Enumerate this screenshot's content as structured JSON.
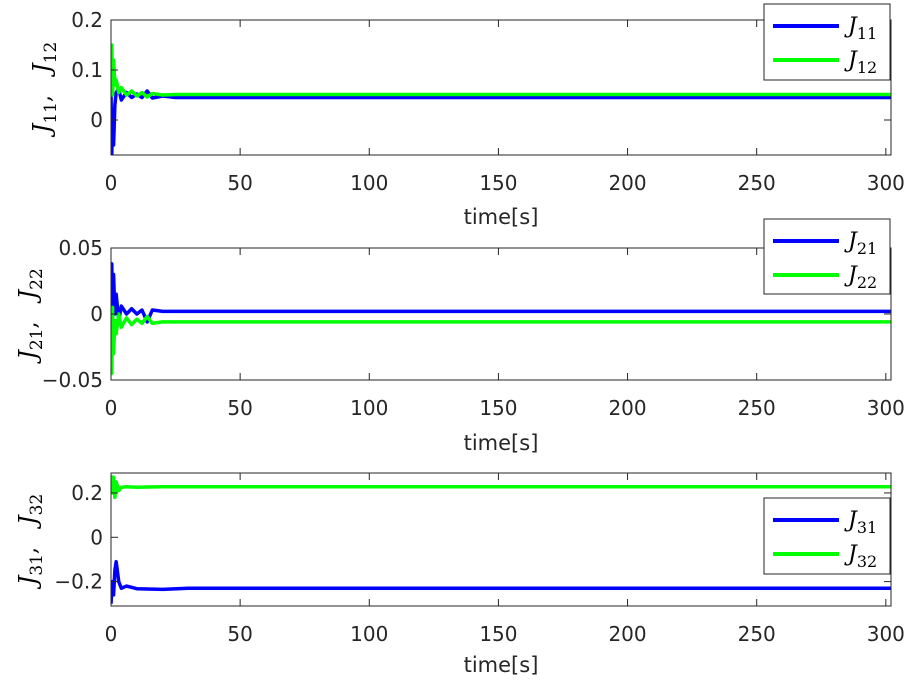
{
  "chart_data": [
    {
      "type": "line",
      "xlabel": "time[s]",
      "ylabel": {
        "symbol": "J",
        "subscripts": [
          "11",
          "12"
        ]
      },
      "xlim": [
        0,
        302
      ],
      "ylim": [
        -0.07,
        0.2
      ],
      "xticks": [
        0,
        50,
        100,
        150,
        200,
        250,
        300
      ],
      "xtick_labels": [
        "0",
        "50",
        "100",
        "150",
        "200",
        "250",
        "300"
      ],
      "yticks": [
        0,
        0.1,
        0.2
      ],
      "ytick_labels": [
        "0",
        "0.1",
        "0.2"
      ],
      "legend_position": "top-right",
      "grid": false,
      "series": [
        {
          "name": "J11",
          "symbol": "J",
          "subscript": "11",
          "color": "#0000ff",
          "x": [
            0,
            0.3,
            0.6,
            1.0,
            1.5,
            2.0,
            3.0,
            4.0,
            6.0,
            8.0,
            10.0,
            12.0,
            14.0,
            16.0,
            20.0,
            25.0,
            30.0,
            302.0
          ],
          "y": [
            0.06,
            -0.07,
            0.02,
            -0.05,
            0.03,
            0.055,
            0.062,
            0.04,
            0.055,
            0.045,
            0.052,
            0.045,
            0.058,
            0.044,
            0.048,
            0.045,
            0.045,
            0.045
          ]
        },
        {
          "name": "J12",
          "symbol": "J",
          "subscript": "12",
          "color": "#00ff00",
          "x": [
            0,
            0.3,
            0.6,
            1.0,
            1.5,
            2.0,
            3.0,
            4.0,
            6.0,
            8.0,
            10.0,
            12.0,
            14.0,
            16.0,
            20.0,
            25.0,
            30.0,
            302.0
          ],
          "y": [
            0.09,
            0.15,
            0.05,
            0.12,
            0.07,
            0.08,
            0.055,
            0.065,
            0.05,
            0.058,
            0.048,
            0.055,
            0.046,
            0.053,
            0.05,
            0.051,
            0.051,
            0.051
          ]
        }
      ]
    },
    {
      "type": "line",
      "xlabel": "time[s]",
      "ylabel": {
        "symbol": "J",
        "subscripts": [
          "21",
          "22"
        ]
      },
      "xlim": [
        0,
        302
      ],
      "ylim": [
        -0.05,
        0.05
      ],
      "xticks": [
        0,
        50,
        100,
        150,
        200,
        250,
        300
      ],
      "xtick_labels": [
        "0",
        "50",
        "100",
        "150",
        "200",
        "250",
        "300"
      ],
      "yticks": [
        -0.05,
        0,
        0.05
      ],
      "ytick_labels": [
        "−0.05",
        "0",
        "0.05"
      ],
      "legend_position": "top-right",
      "grid": false,
      "series": [
        {
          "name": "J21",
          "symbol": "J",
          "subscript": "21",
          "color": "#0000ff",
          "x": [
            0,
            0.3,
            0.6,
            1.0,
            1.5,
            2.0,
            3.0,
            4.0,
            6.0,
            8.0,
            10.0,
            12.0,
            14.0,
            16.0,
            20.0,
            30.0,
            302.0
          ],
          "y": [
            0.01,
            0.038,
            -0.01,
            0.03,
            0.0,
            0.015,
            -0.005,
            0.006,
            0.0,
            0.004,
            0.0,
            0.003,
            -0.006,
            0.003,
            0.002,
            0.002,
            0.002
          ]
        },
        {
          "name": "J22",
          "symbol": "J",
          "subscript": "22",
          "color": "#00ff00",
          "x": [
            0,
            0.3,
            0.6,
            1.0,
            1.5,
            2.0,
            3.0,
            4.0,
            6.0,
            8.0,
            10.0,
            12.0,
            14.0,
            16.0,
            20.0,
            30.0,
            302.0
          ],
          "y": [
            -0.02,
            -0.045,
            0.005,
            -0.03,
            -0.005,
            -0.015,
            0.0,
            -0.01,
            -0.003,
            -0.008,
            -0.004,
            -0.007,
            -0.002,
            -0.007,
            -0.006,
            -0.006,
            -0.006
          ]
        }
      ]
    },
    {
      "type": "line",
      "xlabel": "time[s]",
      "ylabel": {
        "symbol": "J",
        "subscripts": [
          "31",
          "32"
        ]
      },
      "xlim": [
        0,
        302
      ],
      "ylim": [
        -0.31,
        0.29
      ],
      "xticks": [
        0,
        50,
        100,
        150,
        200,
        250,
        300
      ],
      "xtick_labels": [
        "0",
        "50",
        "100",
        "150",
        "200",
        "250",
        "300"
      ],
      "yticks": [
        -0.2,
        0,
        0.2
      ],
      "ytick_labels": [
        "−0.2",
        "0",
        "0.2"
      ],
      "legend_position": "bottom-right",
      "grid": false,
      "series": [
        {
          "name": "J31",
          "symbol": "J",
          "subscript": "31",
          "color": "#0000ff",
          "x": [
            0,
            0.5,
            1.0,
            1.5,
            2.0,
            3.0,
            4.0,
            6.0,
            10.0,
            20.0,
            30.0,
            302.0
          ],
          "y": [
            -0.3,
            -0.2,
            -0.26,
            -0.15,
            -0.11,
            -0.2,
            -0.23,
            -0.22,
            -0.232,
            -0.235,
            -0.23,
            -0.23
          ]
        },
        {
          "name": "J32",
          "symbol": "J",
          "subscript": "32",
          "color": "#00ff00",
          "x": [
            0,
            0.5,
            1.0,
            1.5,
            2.0,
            3.0,
            4.0,
            6.0,
            10.0,
            20.0,
            30.0,
            302.0
          ],
          "y": [
            0.28,
            0.2,
            0.27,
            0.18,
            0.25,
            0.21,
            0.225,
            0.228,
            0.226,
            0.228,
            0.228,
            0.228
          ]
        }
      ]
    }
  ]
}
